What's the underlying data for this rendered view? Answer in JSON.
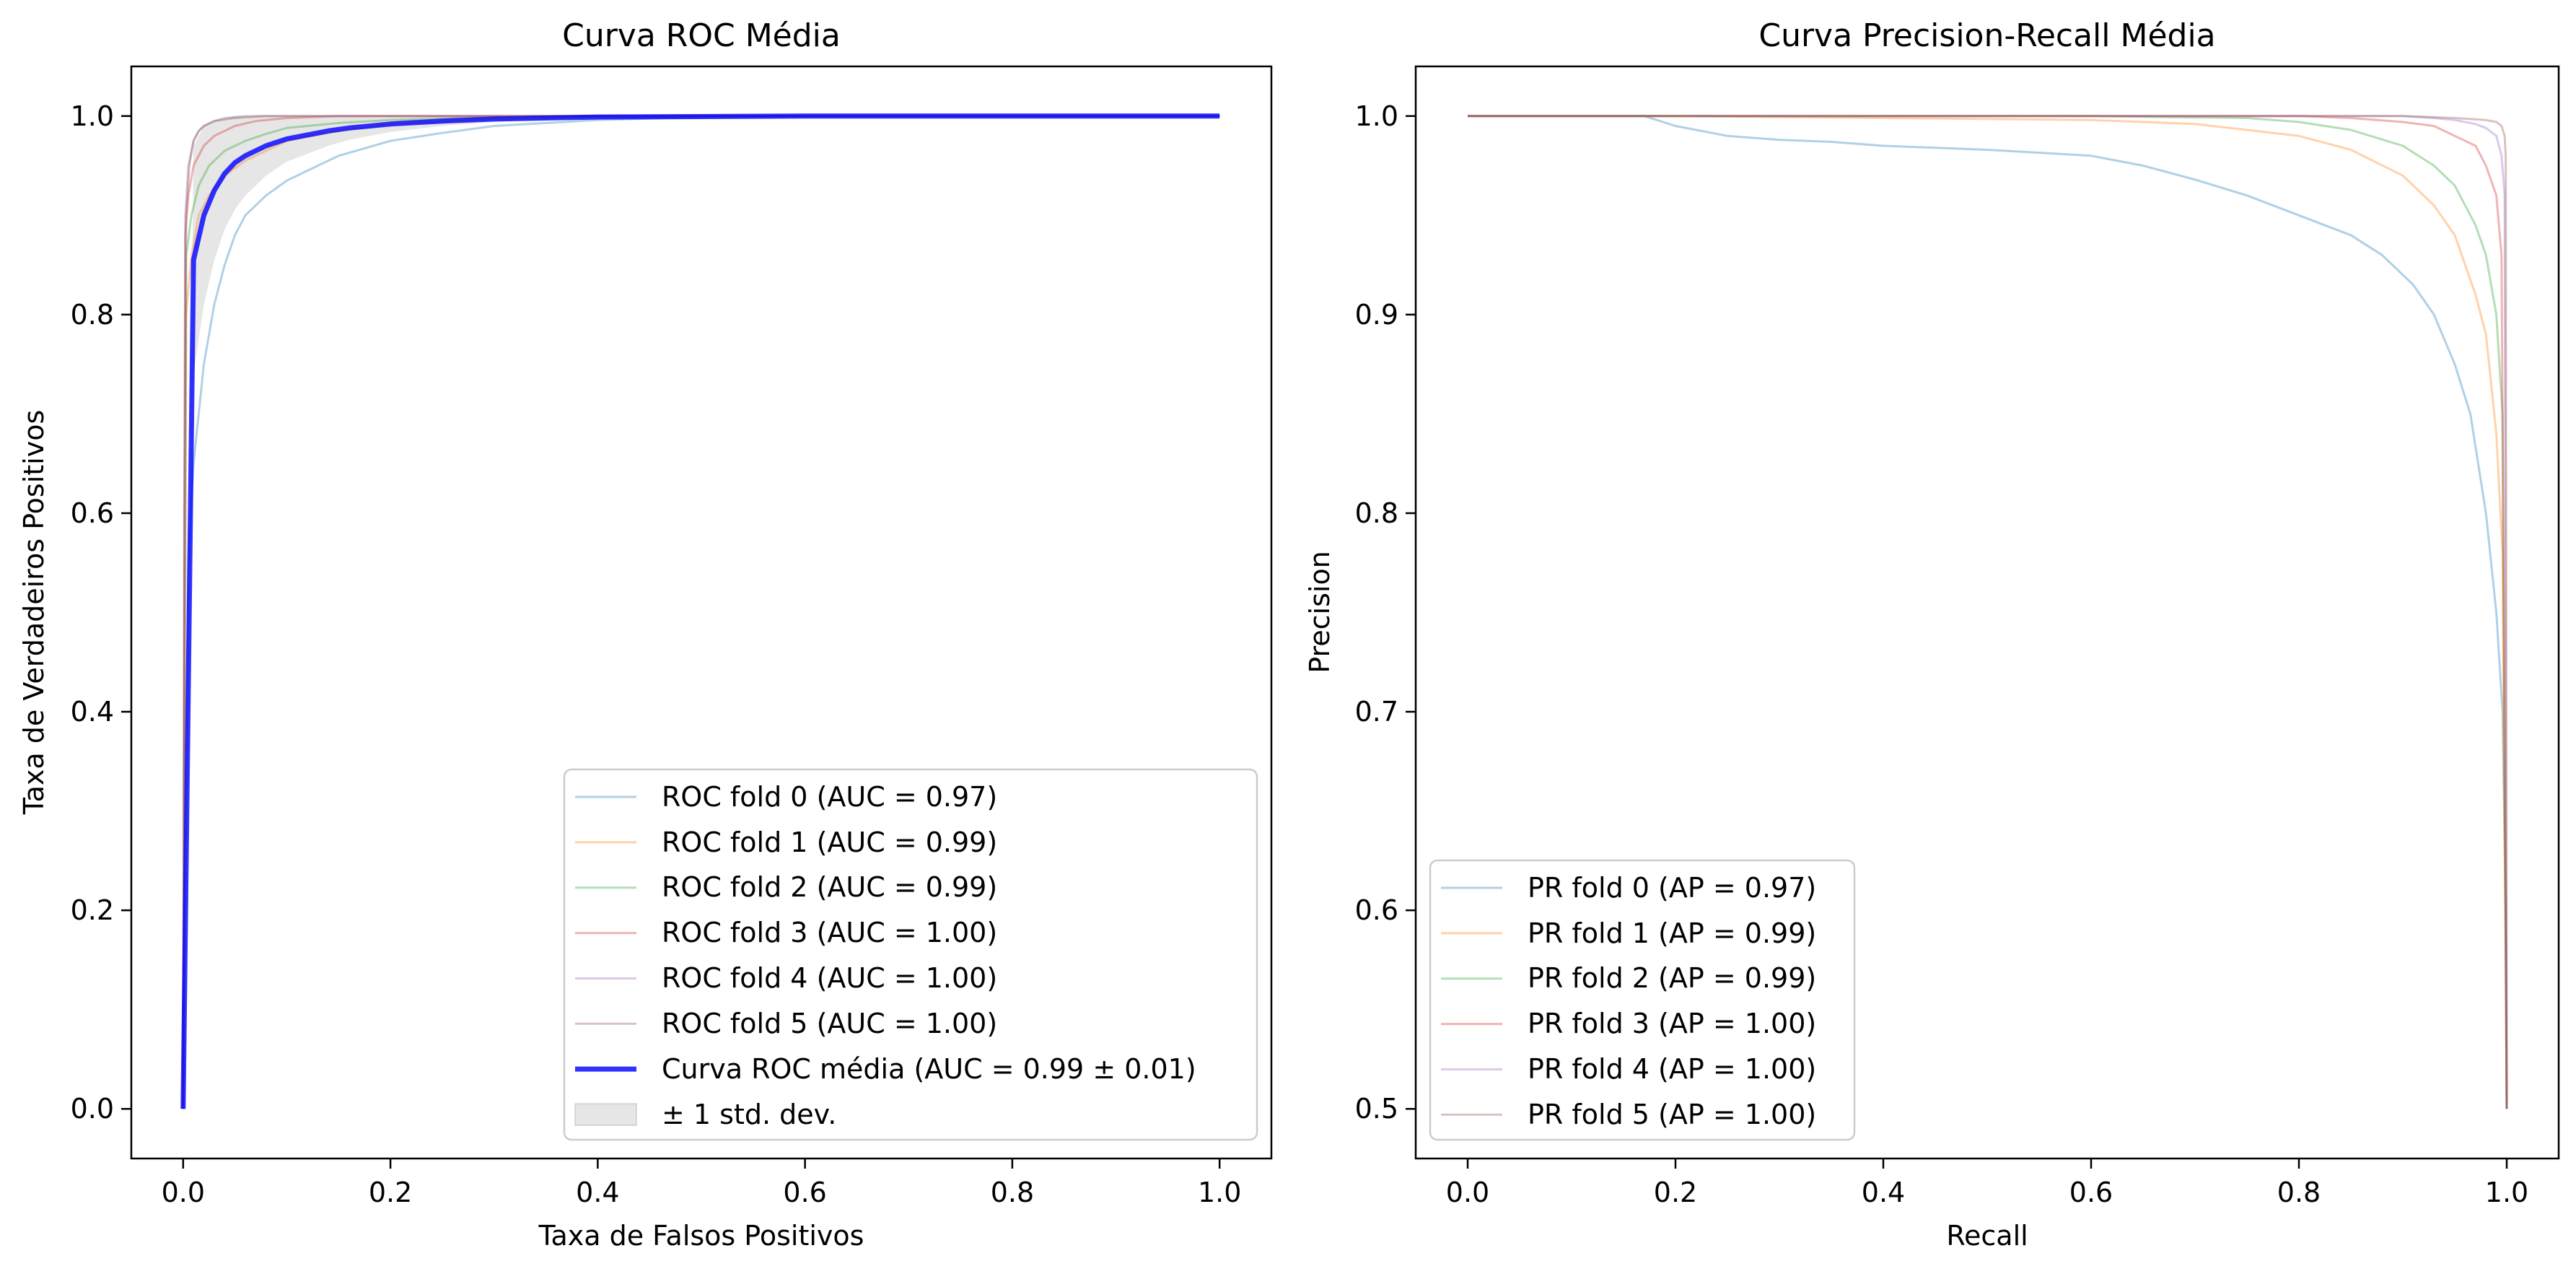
{
  "chart_data": [
    {
      "type": "line",
      "title": "Curva ROC Média",
      "xlabel": "Taxa de Falsos Positivos",
      "ylabel": "Taxa de Verdadeiros Positivos",
      "xlim": [
        -0.05,
        1.05
      ],
      "ylim": [
        -0.05,
        1.05
      ],
      "xticks": [
        0.0,
        0.2,
        0.4,
        0.6,
        0.8,
        1.0
      ],
      "xtick_labels": [
        "0.0",
        "0.2",
        "0.4",
        "0.6",
        "0.8",
        "1.0"
      ],
      "yticks": [
        0.0,
        0.2,
        0.4,
        0.6,
        0.8,
        1.0
      ],
      "ytick_labels": [
        "0.0",
        "0.2",
        "0.4",
        "0.6",
        "0.8",
        "1.0"
      ],
      "grid": false,
      "legend_position": "lower-right",
      "series": [
        {
          "name": "ROC fold 0 (AUC = 0.97)",
          "color": "#1f77b4",
          "alpha": 0.35,
          "width": 3,
          "x": [
            0,
            0.005,
            0.01,
            0.015,
            0.02,
            0.03,
            0.04,
            0.05,
            0.06,
            0.08,
            0.1,
            0.12,
            0.15,
            0.2,
            0.25,
            0.3,
            0.4,
            0.5,
            0.6,
            0.8,
            1.0
          ],
          "y": [
            0,
            0.55,
            0.65,
            0.7,
            0.75,
            0.81,
            0.85,
            0.88,
            0.9,
            0.92,
            0.935,
            0.945,
            0.96,
            0.975,
            0.983,
            0.99,
            0.996,
            0.999,
            1.0,
            1.0,
            1.0
          ]
        },
        {
          "name": "ROC fold 1 (AUC = 0.99)",
          "color": "#ff7f0e",
          "alpha": 0.35,
          "width": 3,
          "x": [
            0,
            0.003,
            0.008,
            0.015,
            0.025,
            0.04,
            0.06,
            0.08,
            0.1,
            0.15,
            0.2,
            0.3,
            0.5,
            1.0
          ],
          "y": [
            0,
            0.8,
            0.86,
            0.9,
            0.92,
            0.94,
            0.955,
            0.965,
            0.975,
            0.985,
            0.992,
            0.997,
            1.0,
            1.0
          ]
        },
        {
          "name": "ROC fold 2 (AUC = 0.99)",
          "color": "#2ca02c",
          "alpha": 0.35,
          "width": 3,
          "x": [
            0,
            0.003,
            0.008,
            0.015,
            0.025,
            0.04,
            0.06,
            0.08,
            0.1,
            0.15,
            0.2,
            0.3,
            0.5,
            1.0
          ],
          "y": [
            0,
            0.86,
            0.9,
            0.93,
            0.95,
            0.965,
            0.975,
            0.982,
            0.988,
            0.993,
            0.996,
            0.999,
            1.0,
            1.0
          ]
        },
        {
          "name": "ROC fold 3 (AUC = 1.00)",
          "color": "#d62728",
          "alpha": 0.35,
          "width": 3,
          "x": [
            0,
            0.002,
            0.005,
            0.01,
            0.02,
            0.03,
            0.05,
            0.07,
            0.1,
            0.15,
            0.2,
            1.0
          ],
          "y": [
            0,
            0.88,
            0.92,
            0.95,
            0.97,
            0.98,
            0.99,
            0.995,
            0.998,
            1.0,
            1.0,
            1.0
          ]
        },
        {
          "name": "ROC fold 4 (AUC = 1.00)",
          "color": "#9467bd",
          "alpha": 0.35,
          "width": 3,
          "x": [
            0,
            0.002,
            0.005,
            0.01,
            0.015,
            0.02,
            0.03,
            0.04,
            0.06,
            0.1,
            1.0
          ],
          "y": [
            0,
            0.9,
            0.95,
            0.975,
            0.985,
            0.99,
            0.995,
            0.998,
            1.0,
            1.0,
            1.0
          ]
        },
        {
          "name": "ROC fold 5 (AUC = 1.00)",
          "color": "#8c564b",
          "alpha": 0.35,
          "width": 3,
          "x": [
            0,
            0.001,
            0.003,
            0.006,
            0.01,
            0.015,
            0.02,
            0.03,
            0.05,
            0.08,
            1.0
          ],
          "y": [
            0,
            0.6,
            0.9,
            0.95,
            0.975,
            0.985,
            0.99,
            0.995,
            0.998,
            1.0,
            1.0
          ]
        },
        {
          "name": "Curva ROC média (AUC = 0.99 ± 0.01)",
          "color": "#0000ff",
          "alpha": 0.8,
          "width": 7,
          "x": [
            0,
            0.01,
            0.02,
            0.03,
            0.04,
            0.05,
            0.06,
            0.08,
            0.1,
            0.12,
            0.14,
            0.16,
            0.2,
            0.25,
            0.3,
            0.4,
            0.5,
            0.6,
            0.7,
            0.8,
            0.9,
            1.0
          ],
          "y": [
            0,
            0.855,
            0.9,
            0.925,
            0.942,
            0.953,
            0.96,
            0.97,
            0.977,
            0.981,
            0.985,
            0.988,
            0.992,
            0.995,
            0.997,
            0.999,
            0.9995,
            1.0,
            1.0,
            1.0,
            1.0,
            1.0
          ]
        }
      ],
      "band": {
        "name": "± 1 std. dev.",
        "color": "#808080",
        "alpha": 0.2,
        "x": [
          0,
          0.01,
          0.02,
          0.03,
          0.04,
          0.05,
          0.06,
          0.08,
          0.1,
          0.12,
          0.14,
          0.16,
          0.2,
          0.25,
          0.3,
          0.4,
          0.5,
          1.0
        ],
        "upper": [
          0,
          0.97,
          0.99,
          0.995,
          0.998,
          1.0,
          1.0,
          1.0,
          1.0,
          1.0,
          1.0,
          1.0,
          1.0,
          1.0,
          1.0,
          1.0,
          1.0,
          1.0
        ],
        "lower": [
          0,
          0.74,
          0.81,
          0.855,
          0.886,
          0.906,
          0.92,
          0.94,
          0.954,
          0.962,
          0.97,
          0.976,
          0.984,
          0.99,
          0.994,
          0.998,
          0.999,
          1.0
        ]
      }
    },
    {
      "type": "line",
      "title": "Curva Precision-Recall Média",
      "xlabel": "Recall",
      "ylabel": "Precision",
      "xlim": [
        -0.05,
        1.05
      ],
      "ylim": [
        0.475,
        1.025
      ],
      "xticks": [
        0.0,
        0.2,
        0.4,
        0.6,
        0.8,
        1.0
      ],
      "xtick_labels": [
        "0.0",
        "0.2",
        "0.4",
        "0.6",
        "0.8",
        "1.0"
      ],
      "yticks": [
        0.5,
        0.6,
        0.7,
        0.8,
        0.9,
        1.0
      ],
      "ytick_labels": [
        "0.5",
        "0.6",
        "0.7",
        "0.8",
        "0.9",
        "1.0"
      ],
      "grid": false,
      "legend_position": "lower-left",
      "series": [
        {
          "name": "PR fold 0 (AP = 0.97)",
          "color": "#1f77b4",
          "alpha": 0.35,
          "width": 3,
          "x": [
            0,
            0.17,
            0.2,
            0.25,
            0.3,
            0.35,
            0.4,
            0.5,
            0.6,
            0.65,
            0.7,
            0.75,
            0.8,
            0.85,
            0.88,
            0.91,
            0.93,
            0.95,
            0.965,
            0.98,
            0.99,
            0.996,
            0.999,
            1.0
          ],
          "y": [
            1.0,
            1.0,
            0.995,
            0.99,
            0.988,
            0.987,
            0.985,
            0.983,
            0.98,
            0.975,
            0.968,
            0.96,
            0.95,
            0.94,
            0.93,
            0.915,
            0.9,
            0.875,
            0.85,
            0.8,
            0.75,
            0.7,
            0.6,
            0.5
          ]
        },
        {
          "name": "PR fold 1 (AP = 0.99)",
          "color": "#ff7f0e",
          "alpha": 0.35,
          "width": 3,
          "x": [
            0,
            0.2,
            0.4,
            0.6,
            0.7,
            0.75,
            0.8,
            0.85,
            0.9,
            0.93,
            0.95,
            0.97,
            0.98,
            0.99,
            0.996,
            1.0
          ],
          "y": [
            1.0,
            1.0,
            0.999,
            0.998,
            0.996,
            0.993,
            0.99,
            0.983,
            0.97,
            0.955,
            0.94,
            0.91,
            0.89,
            0.84,
            0.78,
            0.5
          ]
        },
        {
          "name": "PR fold 2 (AP = 0.99)",
          "color": "#2ca02c",
          "alpha": 0.35,
          "width": 3,
          "x": [
            0,
            0.2,
            0.4,
            0.6,
            0.75,
            0.8,
            0.85,
            0.9,
            0.93,
            0.95,
            0.97,
            0.98,
            0.99,
            0.996,
            1.0
          ],
          "y": [
            1.0,
            1.0,
            1.0,
            1.0,
            0.999,
            0.997,
            0.993,
            0.985,
            0.975,
            0.965,
            0.945,
            0.93,
            0.9,
            0.85,
            0.5
          ]
        },
        {
          "name": "PR fold 3 (AP = 1.00)",
          "color": "#d62728",
          "alpha": 0.35,
          "width": 3,
          "x": [
            0,
            0.4,
            0.8,
            0.85,
            0.9,
            0.93,
            0.95,
            0.97,
            0.98,
            0.99,
            0.995,
            1.0
          ],
          "y": [
            1.0,
            1.0,
            1.0,
            0.999,
            0.997,
            0.995,
            0.99,
            0.985,
            0.975,
            0.96,
            0.93,
            0.5
          ]
        },
        {
          "name": "PR fold 4 (AP = 1.00)",
          "color": "#9467bd",
          "alpha": 0.35,
          "width": 3,
          "x": [
            0,
            0.5,
            0.9,
            0.93,
            0.95,
            0.97,
            0.98,
            0.99,
            0.995,
            0.998,
            1.0
          ],
          "y": [
            1.0,
            1.0,
            1.0,
            0.999,
            0.998,
            0.996,
            0.994,
            0.99,
            0.98,
            0.96,
            0.5
          ]
        },
        {
          "name": "PR fold 5 (AP = 1.00)",
          "color": "#8c564b",
          "alpha": 0.35,
          "width": 3,
          "x": [
            0,
            0.5,
            0.9,
            0.95,
            0.98,
            0.99,
            0.995,
            0.998,
            0.999,
            1.0
          ],
          "y": [
            1.0,
            1.0,
            1.0,
            0.999,
            0.998,
            0.997,
            0.995,
            0.99,
            0.98,
            0.5
          ]
        }
      ]
    }
  ]
}
